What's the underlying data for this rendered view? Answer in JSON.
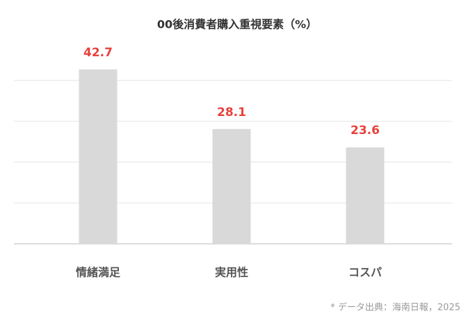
{
  "chart_data": {
    "type": "bar",
    "title": "00後消費者購入重視要素（%）",
    "categories": [
      "情緒満足",
      "実用性",
      "コスパ"
    ],
    "values": [
      42.7,
      28.1,
      23.6
    ],
    "color": "#d9d9d9",
    "label_color": "#e8413c",
    "ylim": [
      0,
      50
    ],
    "yticks": [
      0,
      10,
      20,
      30,
      40
    ],
    "grid": true,
    "source": "* データ出典：海南日報，2025"
  }
}
